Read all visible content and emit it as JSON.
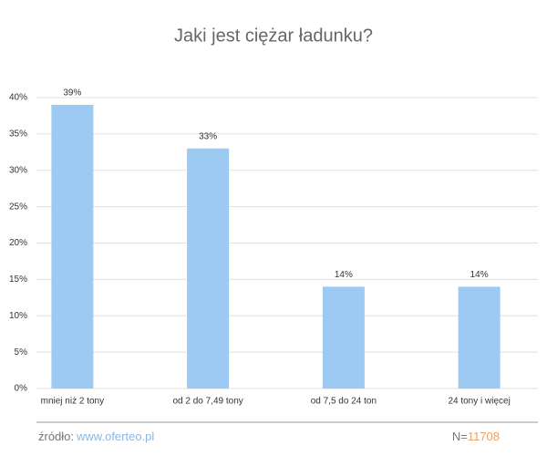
{
  "chart_data": {
    "type": "bar",
    "title": "Jaki jest ciężar ładunku?",
    "categories": [
      "mniej niż 2 tony",
      "od 2 do 7,49 tony",
      "od 7,5 do 24 ton",
      "24 tony i więcej"
    ],
    "values": [
      39,
      33,
      14,
      14
    ],
    "value_labels": [
      "39%",
      "33%",
      "14%",
      "14%"
    ],
    "color": "#9ccaf2",
    "ylim": [
      0,
      40
    ],
    "yticks": [
      {
        "value": 0,
        "label": "0%"
      },
      {
        "value": 5,
        "label": "5%"
      },
      {
        "value": 10,
        "label": "10%"
      },
      {
        "value": 15,
        "label": "15%"
      },
      {
        "value": 20,
        "label": "20%"
      },
      {
        "value": 25,
        "label": "25%"
      },
      {
        "value": 30,
        "label": "30%"
      },
      {
        "value": 35,
        "label": "35%"
      },
      {
        "value": 40,
        "label": "40%"
      }
    ],
    "grid": true
  },
  "footer": {
    "source_label": "źródło:",
    "source_url": "www.oferteo.pl",
    "n_label": "N=",
    "n_value": "11708"
  }
}
